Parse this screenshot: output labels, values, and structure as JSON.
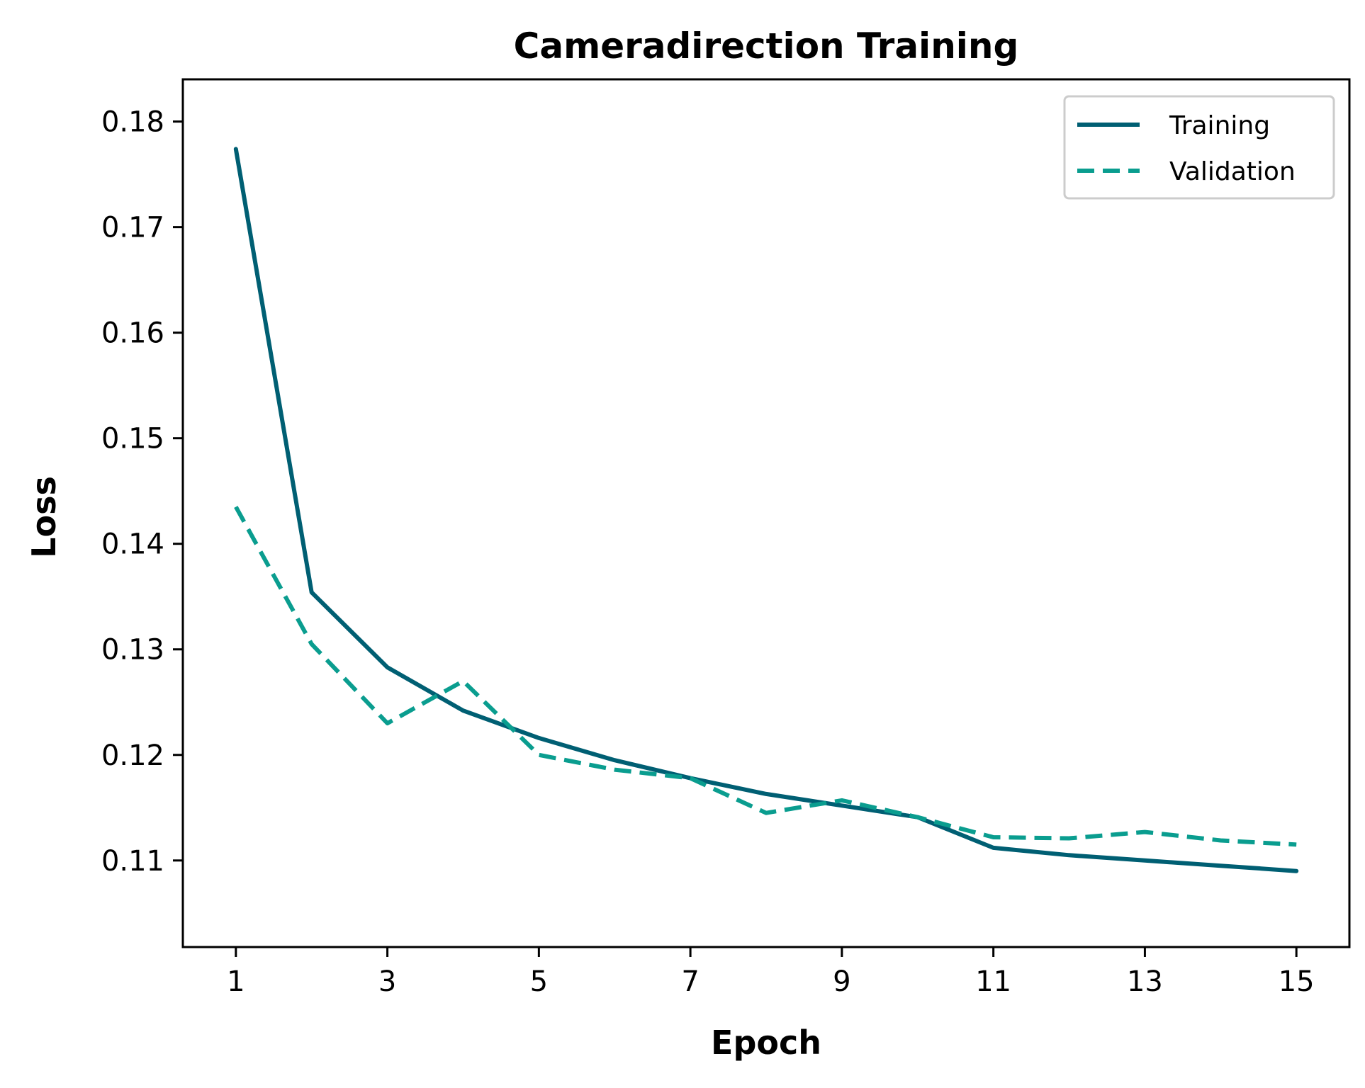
{
  "chart_data": {
    "type": "line",
    "title": "Cameradirection Training",
    "xlabel": "Epoch",
    "ylabel": "Loss",
    "x": [
      1,
      2,
      3,
      4,
      5,
      6,
      7,
      8,
      9,
      10,
      11,
      12,
      13,
      14,
      15
    ],
    "xticks": [
      1,
      3,
      5,
      7,
      9,
      11,
      13,
      15
    ],
    "xtick_labels": [
      "1",
      "3",
      "5",
      "7",
      "9",
      "11",
      "13",
      "15"
    ],
    "yticks": [
      0.11,
      0.12,
      0.13,
      0.14,
      0.15,
      0.16,
      0.17,
      0.18
    ],
    "ytick_labels": [
      "0.11",
      "0.12",
      "0.13",
      "0.14",
      "0.15",
      "0.16",
      "0.17",
      "0.18"
    ],
    "xlim": [
      0.3,
      15.7
    ],
    "ylim": [
      0.1018,
      0.184
    ],
    "grid": false,
    "legend_position": "top-right",
    "series": [
      {
        "name": "Training",
        "style": "solid",
        "color": "#005f73",
        "values": [
          0.1774,
          0.1354,
          0.1283,
          0.1242,
          0.1216,
          0.1195,
          0.1178,
          0.1163,
          0.1152,
          0.1141,
          0.1112,
          0.1105,
          0.11,
          0.1095,
          0.109
        ]
      },
      {
        "name": "Validation",
        "style": "dashed",
        "color": "#0a9d8f",
        "values": [
          0.1435,
          0.1305,
          0.123,
          0.127,
          0.12,
          0.1186,
          0.1178,
          0.1145,
          0.1157,
          0.1141,
          0.1122,
          0.1121,
          0.1127,
          0.1119,
          0.1115
        ]
      }
    ]
  }
}
